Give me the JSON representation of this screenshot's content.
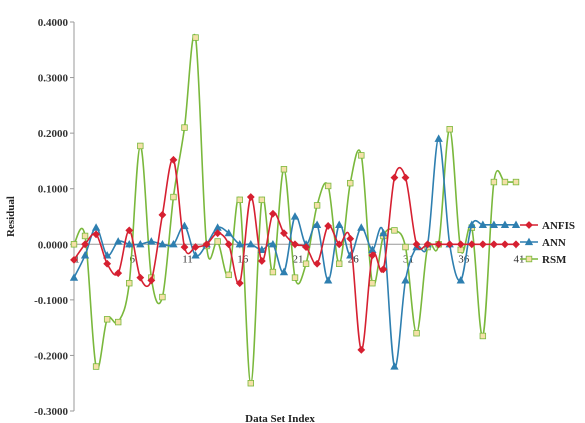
{
  "chart_data": {
    "type": "line",
    "xlabel": "Data Set Index",
    "ylabel": "Residual",
    "ylim": [
      -0.3,
      0.4
    ],
    "xlim": [
      1,
      41
    ],
    "yticks": [
      "0.4000",
      "0.3000",
      "0.2000",
      "0.1000",
      "0.0000",
      "-0.1000",
      "-0.2000",
      "-0.3000"
    ],
    "ytick_values": [
      0.4,
      0.3,
      0.2,
      0.1,
      0.0,
      -0.1,
      -0.2,
      -0.3
    ],
    "xticks": [
      "1",
      "6",
      "11",
      "16",
      "21",
      "26",
      "31",
      "36",
      "41"
    ],
    "xtick_values": [
      1,
      6,
      11,
      16,
      21,
      26,
      31,
      36,
      41
    ],
    "grid": false,
    "legend_position": "right",
    "x": [
      1,
      2,
      3,
      4,
      5,
      6,
      7,
      8,
      9,
      10,
      11,
      12,
      13,
      14,
      15,
      16,
      17,
      18,
      19,
      20,
      21,
      22,
      23,
      24,
      25,
      26,
      27,
      28,
      29,
      30,
      31,
      32,
      33,
      34,
      35,
      36,
      37,
      38,
      39,
      40,
      41
    ],
    "series": [
      {
        "name": "ANFIS",
        "color": "#d62031",
        "marker": "diamond",
        "values": [
          -0.028,
          0.0,
          0.018,
          -0.035,
          -0.052,
          0.025,
          -0.06,
          -0.065,
          0.053,
          0.152,
          -0.005,
          -0.005,
          0.0,
          0.02,
          0.0,
          -0.07,
          0.085,
          -0.03,
          0.055,
          0.02,
          0.0,
          -0.005,
          -0.035,
          0.033,
          0.0,
          0.01,
          -0.19,
          -0.02,
          -0.045,
          0.12,
          0.12,
          0.0,
          0.0,
          0.0,
          0.0,
          0.0,
          0.0,
          0.0,
          0.0,
          0.0,
          0.0
        ]
      },
      {
        "name": "ANN",
        "color": "#2e7fb0",
        "marker": "triangle",
        "values": [
          -0.06,
          -0.02,
          0.03,
          -0.02,
          0.005,
          0.0,
          0.0,
          0.005,
          0.0,
          0.0,
          0.033,
          -0.02,
          0.0,
          0.03,
          0.02,
          0.0,
          0.0,
          -0.01,
          0.0,
          -0.05,
          0.05,
          0.0,
          0.035,
          -0.065,
          0.035,
          -0.02,
          0.03,
          -0.01,
          0.02,
          -0.22,
          -0.065,
          -0.005,
          0.0,
          0.19,
          0.0,
          -0.065,
          0.035,
          0.035,
          0.035,
          0.035,
          0.035
        ]
      },
      {
        "name": "RSM",
        "color": "#7ab83c",
        "marker": "square",
        "values": [
          0.0,
          0.015,
          -0.22,
          -0.135,
          -0.14,
          -0.07,
          0.177,
          -0.06,
          -0.095,
          0.085,
          0.21,
          0.372,
          -0.003,
          0.005,
          -0.055,
          0.08,
          -0.25,
          0.08,
          -0.05,
          0.135,
          -0.06,
          -0.035,
          0.07,
          0.105,
          -0.035,
          0.11,
          0.16,
          -0.07,
          0.015,
          0.025,
          -0.005,
          -0.16,
          -0.005,
          0.0,
          0.207,
          -0.01,
          0.03,
          -0.165,
          0.112,
          0.112,
          0.112
        ]
      }
    ]
  }
}
